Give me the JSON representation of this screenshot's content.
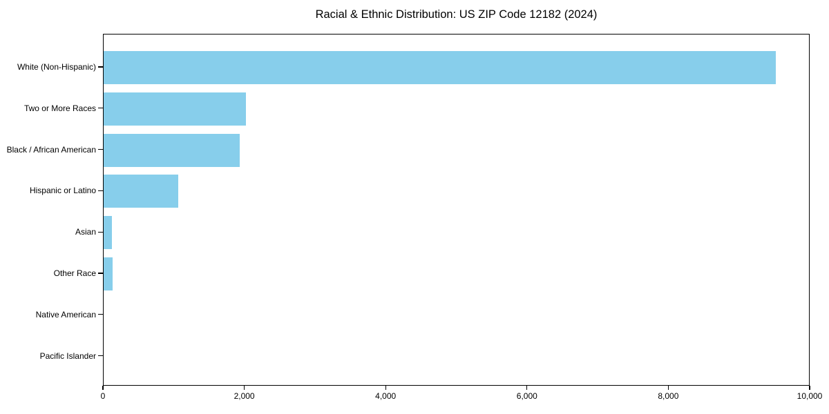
{
  "title": "Racial & Ethnic Distribution: US ZIP Code 12182 (2024)",
  "chart_data": {
    "type": "bar",
    "orientation": "horizontal",
    "title": "Racial & Ethnic Distribution: US ZIP Code 12182 (2024)",
    "categories": [
      "White (Non-Hispanic)",
      "Two or More Races",
      "Black / African American",
      "Hispanic or Latino",
      "Asian",
      "Other Race",
      "Native American",
      "Pacific Islander"
    ],
    "values": [
      9530,
      2020,
      1930,
      1060,
      120,
      130,
      0,
      0
    ],
    "xlabel": "",
    "ylabel": "",
    "xlim": [
      0,
      10000
    ],
    "x_ticks": [
      0,
      2000,
      4000,
      6000,
      8000,
      10000
    ],
    "x_tick_labels": [
      "0",
      "2,000",
      "4,000",
      "6,000",
      "8,000",
      "10,000"
    ],
    "bar_color": "#87CEEB",
    "axis_color": "#000000",
    "background_color": "#ffffff",
    "grid": false,
    "legend": "none"
  }
}
